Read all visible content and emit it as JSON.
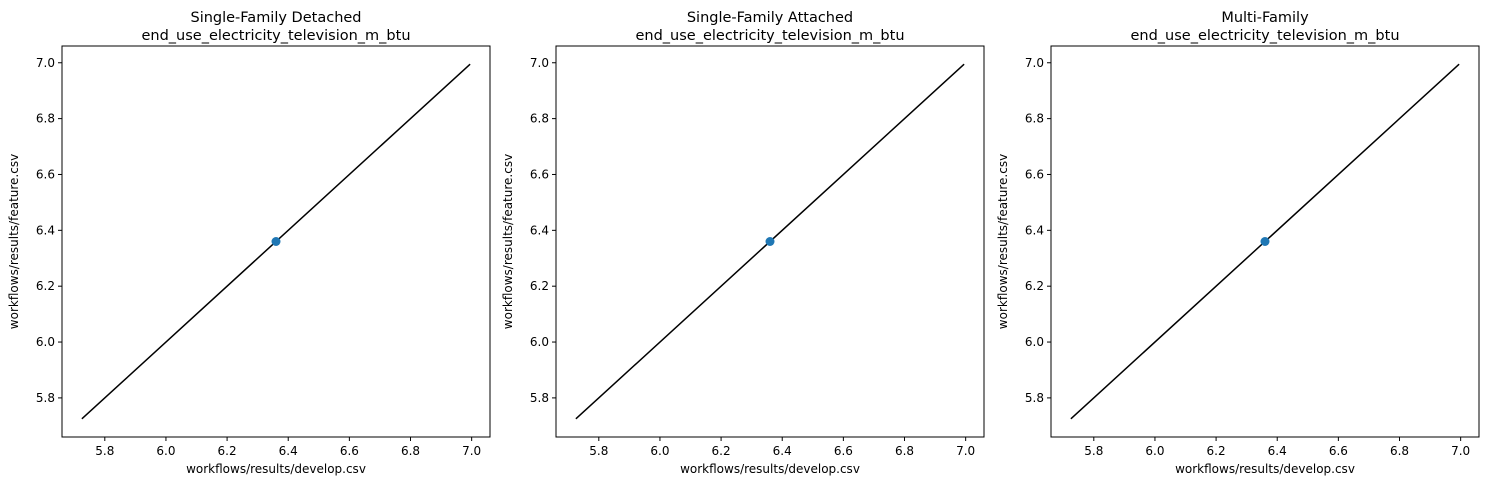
{
  "colors": {
    "point": "#1f77b4",
    "line": "#000000",
    "axes": "#000000",
    "background": "#ffffff"
  },
  "chart_data": [
    {
      "type": "scatter",
      "title": "Single-Family Detached",
      "subtitle": "end_use_electricity_television_m_btu",
      "xlabel": "workflows/results/develop.csv",
      "ylabel": "workflows/results/feature.csv",
      "xlim": [
        5.66,
        7.06
      ],
      "ylim": [
        5.66,
        7.06
      ],
      "xticks": [
        "5.8",
        "6.0",
        "6.2",
        "6.4",
        "6.6",
        "6.8",
        "7.0"
      ],
      "yticks": [
        "5.8",
        "6.0",
        "6.2",
        "6.4",
        "6.6",
        "6.8",
        "7.0"
      ],
      "points": [
        {
          "x": 6.36,
          "y": 6.36
        }
      ],
      "reference_line": {
        "x": [
          5.725,
          6.995
        ],
        "y": [
          5.725,
          6.995
        ]
      },
      "grid": false
    },
    {
      "type": "scatter",
      "title": "Single-Family Attached",
      "subtitle": "end_use_electricity_television_m_btu",
      "xlabel": "workflows/results/develop.csv",
      "ylabel": "workflows/results/feature.csv",
      "xlim": [
        5.66,
        7.06
      ],
      "ylim": [
        5.66,
        7.06
      ],
      "xticks": [
        "5.8",
        "6.0",
        "6.2",
        "6.4",
        "6.6",
        "6.8",
        "7.0"
      ],
      "yticks": [
        "5.8",
        "6.0",
        "6.2",
        "6.4",
        "6.6",
        "6.8",
        "7.0"
      ],
      "points": [
        {
          "x": 6.36,
          "y": 6.36
        }
      ],
      "reference_line": {
        "x": [
          5.725,
          6.995
        ],
        "y": [
          5.725,
          6.995
        ]
      },
      "grid": false
    },
    {
      "type": "scatter",
      "title": "Multi-Family",
      "subtitle": "end_use_electricity_television_m_btu",
      "xlabel": "workflows/results/develop.csv",
      "ylabel": "workflows/results/feature.csv",
      "xlim": [
        5.66,
        7.06
      ],
      "ylim": [
        5.66,
        7.06
      ],
      "xticks": [
        "5.8",
        "6.0",
        "6.2",
        "6.4",
        "6.6",
        "6.8",
        "7.0"
      ],
      "yticks": [
        "5.8",
        "6.0",
        "6.2",
        "6.4",
        "6.6",
        "6.8",
        "7.0"
      ],
      "points": [
        {
          "x": 6.36,
          "y": 6.36
        }
      ],
      "reference_line": {
        "x": [
          5.725,
          6.995
        ],
        "y": [
          5.725,
          6.995
        ]
      },
      "grid": false
    }
  ]
}
